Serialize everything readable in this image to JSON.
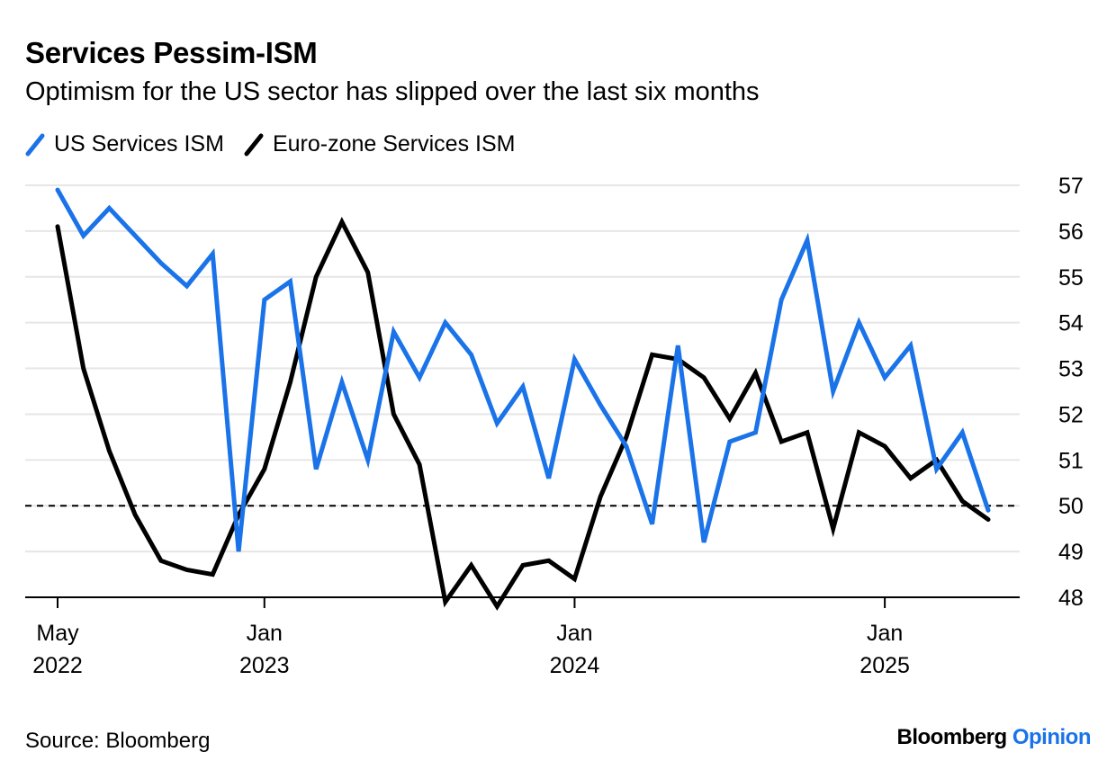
{
  "title": "Services Pessim-ISM",
  "subtitle": "Optimism for the US sector has slipped over the last six months",
  "source": "Source: Bloomberg",
  "brand": {
    "name": "Bloomberg",
    "product": "Opinion"
  },
  "colors": {
    "us": "#1a73e8",
    "ez": "#000000",
    "grid": "#e6e6e6",
    "brand_accent": "#1a73e8"
  },
  "chart_data": {
    "type": "line",
    "x": [
      "2022-05",
      "2022-06",
      "2022-07",
      "2022-08",
      "2022-09",
      "2022-10",
      "2022-11",
      "2022-12",
      "2023-01",
      "2023-02",
      "2023-03",
      "2023-04",
      "2023-05",
      "2023-06",
      "2023-07",
      "2023-08",
      "2023-09",
      "2023-10",
      "2023-11",
      "2023-12",
      "2024-01",
      "2024-02",
      "2024-03",
      "2024-04",
      "2024-05",
      "2024-06",
      "2024-07",
      "2024-08",
      "2024-09",
      "2024-10",
      "2024-11",
      "2024-12",
      "2025-01",
      "2025-02",
      "2025-03",
      "2025-04",
      "2025-05"
    ],
    "series": [
      {
        "name": "US Services ISM",
        "color": "#1a73e8",
        "values": [
          56.9,
          55.9,
          56.5,
          55.9,
          55.3,
          54.8,
          55.5,
          49.0,
          54.5,
          54.9,
          50.8,
          52.7,
          51.0,
          53.8,
          52.8,
          54.0,
          53.3,
          51.8,
          52.6,
          50.6,
          53.2,
          52.2,
          51.3,
          49.6,
          53.5,
          49.2,
          51.4,
          51.6,
          54.5,
          55.8,
          52.5,
          54.0,
          52.8,
          53.5,
          50.8,
          51.6,
          49.9
        ]
      },
      {
        "name": "Euro-zone Services ISM",
        "color": "#000000",
        "values": [
          56.1,
          53.0,
          51.2,
          49.8,
          48.8,
          48.6,
          48.5,
          49.8,
          50.8,
          52.7,
          55.0,
          56.2,
          55.1,
          52.0,
          50.9,
          47.9,
          48.7,
          47.8,
          48.7,
          48.8,
          48.4,
          50.2,
          51.5,
          53.3,
          53.2,
          52.8,
          51.9,
          52.9,
          51.4,
          51.6,
          49.5,
          51.6,
          51.3,
          50.6,
          51.0,
          50.1,
          49.7
        ]
      }
    ],
    "reference_line": {
      "y": 50,
      "style": "dashed"
    },
    "ylim": [
      48,
      57
    ],
    "yticks": [
      "48",
      "49",
      "50",
      "51",
      "52",
      "53",
      "54",
      "55",
      "56",
      "57"
    ],
    "xticks": [
      {
        "x": "2022-05",
        "line1": "May",
        "line2": "2022"
      },
      {
        "x": "2023-01",
        "line1": "Jan",
        "line2": "2023"
      },
      {
        "x": "2024-01",
        "line1": "Jan",
        "line2": "2024"
      },
      {
        "x": "2025-01",
        "line1": "Jan",
        "line2": "2025"
      }
    ],
    "y_axis_side": "right",
    "grid": true,
    "legend_position": "top-left"
  }
}
